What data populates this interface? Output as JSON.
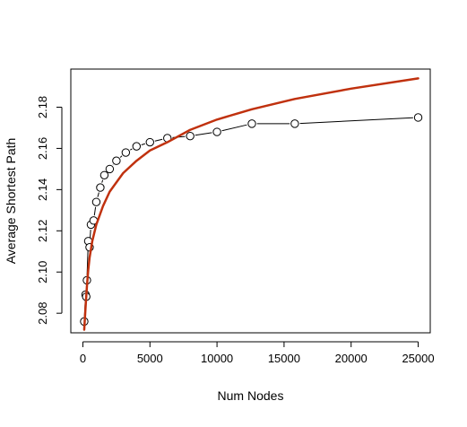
{
  "chart_data": {
    "type": "scatter",
    "title": "",
    "xlabel": "Num Nodes",
    "ylabel": "Average Shortest Path",
    "xlim": [
      -900,
      25900
    ],
    "ylim": [
      2.0705,
      2.1985
    ],
    "x_ticks": [
      0,
      5000,
      10000,
      15000,
      20000,
      25000
    ],
    "x_tick_labels": [
      "0",
      "5000",
      "10000",
      "15000",
      "20000",
      "25000"
    ],
    "y_ticks": [
      2.08,
      2.1,
      2.12,
      2.14,
      2.16,
      2.18
    ],
    "y_tick_labels": [
      "2.08",
      "2.10",
      "2.12",
      "2.14",
      "2.16",
      "2.18"
    ],
    "grid": false,
    "series": [
      {
        "style": "points-with-line",
        "color": "#000000",
        "points": [
          [
            100,
            2.076
          ],
          [
            200,
            2.089
          ],
          [
            250,
            2.088
          ],
          [
            300,
            2.096
          ],
          [
            400,
            2.115
          ],
          [
            500,
            2.112
          ],
          [
            600,
            2.123
          ],
          [
            800,
            2.125
          ],
          [
            1000,
            2.134
          ],
          [
            1300,
            2.141
          ],
          [
            1600,
            2.147
          ],
          [
            2000,
            2.15
          ],
          [
            2500,
            2.154
          ],
          [
            3200,
            2.158
          ],
          [
            4000,
            2.161
          ],
          [
            5000,
            2.163
          ],
          [
            6300,
            2.165
          ],
          [
            8000,
            2.166
          ],
          [
            10000,
            2.168
          ],
          [
            12600,
            2.172
          ],
          [
            15800,
            2.172
          ],
          [
            25000,
            2.175
          ]
        ]
      },
      {
        "style": "fit-curve",
        "color": "#c0310e",
        "points": [
          [
            100,
            2.072
          ],
          [
            200,
            2.083
          ],
          [
            300,
            2.093
          ],
          [
            400,
            2.101
          ],
          [
            500,
            2.107
          ],
          [
            700,
            2.115
          ],
          [
            1000,
            2.123
          ],
          [
            1500,
            2.132
          ],
          [
            2000,
            2.139
          ],
          [
            3000,
            2.148
          ],
          [
            4000,
            2.154
          ],
          [
            5000,
            2.159
          ],
          [
            6300,
            2.163
          ],
          [
            8000,
            2.169
          ],
          [
            10000,
            2.174
          ],
          [
            12600,
            2.179
          ],
          [
            15800,
            2.184
          ],
          [
            20000,
            2.189
          ],
          [
            25000,
            2.194
          ]
        ]
      }
    ]
  }
}
